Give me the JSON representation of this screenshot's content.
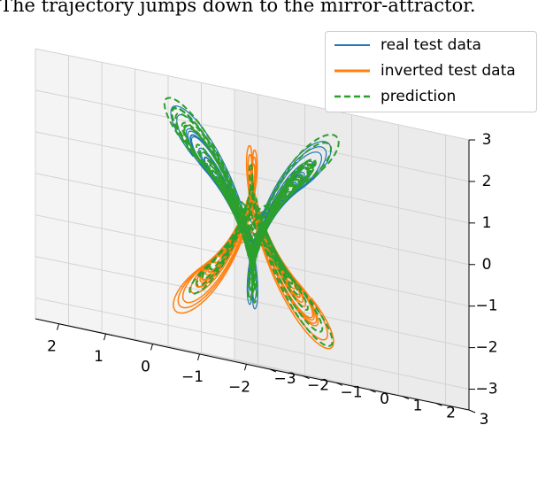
{
  "caption": "The trajectory jumps down to the mirror-attractor.",
  "chart_data": {
    "type": "line",
    "projection": "3d",
    "grid": true,
    "legend_placement": "top-right",
    "x_ticks": [
      "−2",
      "−1",
      "0",
      "1",
      "2"
    ],
    "y_ticks": [
      "−3",
      "−2",
      "−1",
      "0",
      "1",
      "2",
      "3"
    ],
    "z_ticks": [
      "−3",
      "−2",
      "−1",
      "0",
      "1",
      "2",
      "3"
    ],
    "xlim": [
      -2.5,
      2.5
    ],
    "ylim": [
      -3,
      3
    ],
    "zlim": [
      -3.5,
      3
    ],
    "series": [
      {
        "name": "real test data",
        "color": "#1f77b4",
        "style": "solid"
      },
      {
        "name": "inverted test data",
        "color": "#ff7f0e",
        "style": "solid"
      },
      {
        "name": "prediction",
        "color": "#2ca02c",
        "style": "dashed"
      }
    ]
  }
}
